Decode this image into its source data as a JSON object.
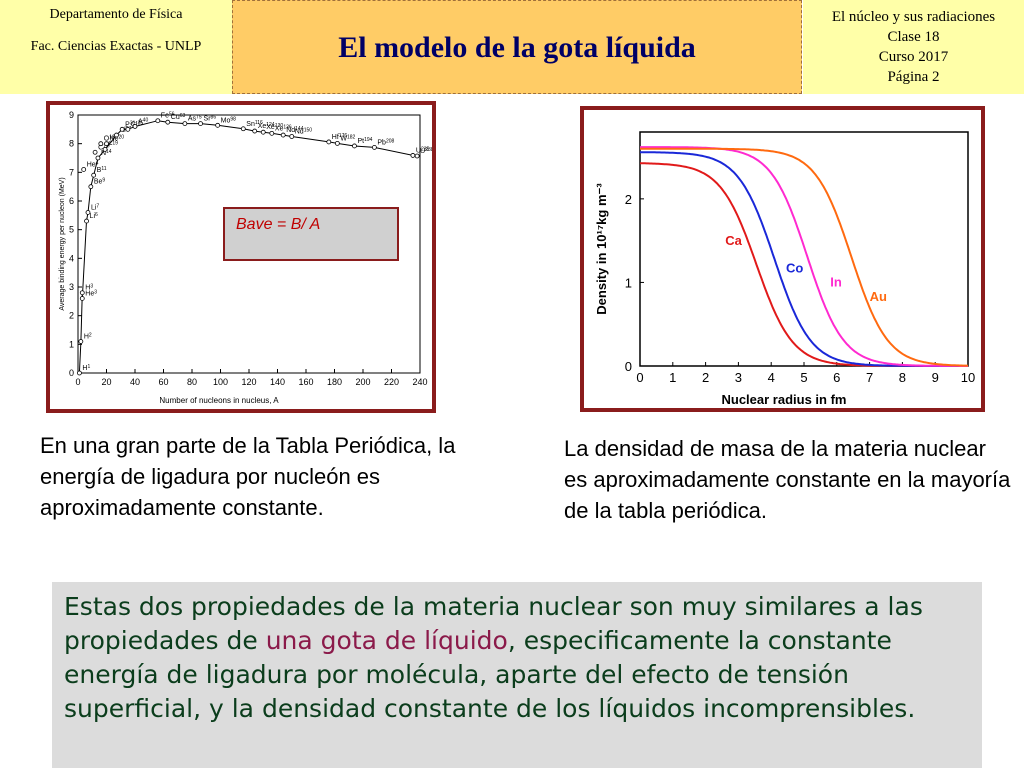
{
  "header": {
    "left": [
      "Departamento de Física",
      "Fac. Ciencias Exactas - UNLP"
    ],
    "title": "El modelo de la gota líquida",
    "right": [
      "El núcleo y sus radiaciones",
      "Clase 18",
      "Curso 2017",
      "Página 2"
    ]
  },
  "captions": {
    "left": "En una gran parte de la Tabla Periódica, la energía de ligadura por nucleón es aproximadamente constante.",
    "right": "La densidad de masa de la materia nuclear es aproximadamente constante en la mayoría de la tabla periódica."
  },
  "summary": {
    "before": "Estas dos propiedades de la materia nuclear son muy similares a las propiedades de ",
    "highlight": "una gota de líquido",
    "after": ", especificamente la constante  energía de ligadura por molécula, aparte del efecto de tensión superficial, y la densidad constante de los líquidos incomprensibles."
  },
  "chart_data": [
    {
      "type": "scatter",
      "title": "",
      "xlabel": "Number of nucleons in nucleus, A",
      "ylabel": "Average binding energy per nucleon (MeV)",
      "xlim": [
        0,
        240
      ],
      "ylim": [
        0,
        9
      ],
      "xticks": [
        0,
        20,
        40,
        60,
        80,
        100,
        120,
        140,
        160,
        180,
        200,
        220,
        240
      ],
      "yticks": [
        0,
        1,
        2,
        3,
        4,
        5,
        6,
        7,
        8,
        9
      ],
      "annotation": "Bave = B/ A",
      "points": [
        {
          "label": "H1",
          "x": 1,
          "y": 0
        },
        {
          "label": "H2",
          "x": 2,
          "y": 1.1
        },
        {
          "label": "H3",
          "x": 3,
          "y": 2.8
        },
        {
          "label": "He3",
          "x": 3,
          "y": 2.6
        },
        {
          "label": "He4",
          "x": 4,
          "y": 7.1
        },
        {
          "label": "Li6",
          "x": 6,
          "y": 5.3
        },
        {
          "label": "Li7",
          "x": 7,
          "y": 5.6
        },
        {
          "label": "Be9",
          "x": 9,
          "y": 6.5
        },
        {
          "label": "B11",
          "x": 11,
          "y": 6.9
        },
        {
          "label": "C12",
          "x": 12,
          "y": 7.7
        },
        {
          "label": "N14",
          "x": 14,
          "y": 7.5
        },
        {
          "label": "O16",
          "x": 16,
          "y": 8.0
        },
        {
          "label": "F19",
          "x": 19,
          "y": 7.8
        },
        {
          "label": "Ne20",
          "x": 20,
          "y": 8.0
        },
        {
          "label": "Al27",
          "x": 27,
          "y": 8.3
        },
        {
          "label": "P31",
          "x": 31,
          "y": 8.5
        },
        {
          "label": "Cl35",
          "x": 35,
          "y": 8.5
        },
        {
          "label": "A40",
          "x": 40,
          "y": 8.6
        },
        {
          "label": "Fe56",
          "x": 56,
          "y": 8.8
        },
        {
          "label": "Cu63",
          "x": 63,
          "y": 8.75
        },
        {
          "label": "As75",
          "x": 75,
          "y": 8.7
        },
        {
          "label": "Mo98",
          "x": 98,
          "y": 8.64
        },
        {
          "label": "Sr86",
          "x": 86,
          "y": 8.7
        },
        {
          "label": "Sn116",
          "x": 116,
          "y": 8.52
        },
        {
          "label": "Xe124",
          "x": 124,
          "y": 8.44
        },
        {
          "label": "Xe130",
          "x": 130,
          "y": 8.4
        },
        {
          "label": "Xe136",
          "x": 136,
          "y": 8.36
        },
        {
          "label": "Nd144",
          "x": 144,
          "y": 8.3
        },
        {
          "label": "Nd150",
          "x": 150,
          "y": 8.25
        },
        {
          "label": "Hf176",
          "x": 176,
          "y": 8.06
        },
        {
          "label": "W182",
          "x": 182,
          "y": 8.01
        },
        {
          "label": "Pt194",
          "x": 194,
          "y": 7.92
        },
        {
          "label": "Pb208",
          "x": 208,
          "y": 7.87
        },
        {
          "label": "U235",
          "x": 235,
          "y": 7.59
        },
        {
          "label": "U238",
          "x": 238,
          "y": 7.57
        }
      ]
    },
    {
      "type": "line",
      "title": "",
      "xlabel": "Nuclear radius in fm",
      "ylabel": "Density in 10¹⁷kg m⁻³",
      "xlim": [
        0,
        10
      ],
      "ylim": [
        0,
        2.8
      ],
      "xticks": [
        0,
        1,
        2,
        3,
        4,
        5,
        6,
        7,
        8,
        9,
        10
      ],
      "yticks": [
        0,
        1,
        2
      ],
      "series": [
        {
          "name": "Ca",
          "color": "#e11a1a",
          "rho0": 2.43,
          "R": 3.55,
          "a": 0.55
        },
        {
          "name": "Co",
          "color": "#1a28d8",
          "rho0": 2.56,
          "R": 4.1,
          "a": 0.55
        },
        {
          "name": "In",
          "color": "#ff2ad0",
          "rho0": 2.62,
          "R": 5.1,
          "a": 0.55
        },
        {
          "name": "Au",
          "color": "#ff6a10",
          "rho0": 2.6,
          "R": 6.45,
          "a": 0.55
        }
      ]
    }
  ]
}
